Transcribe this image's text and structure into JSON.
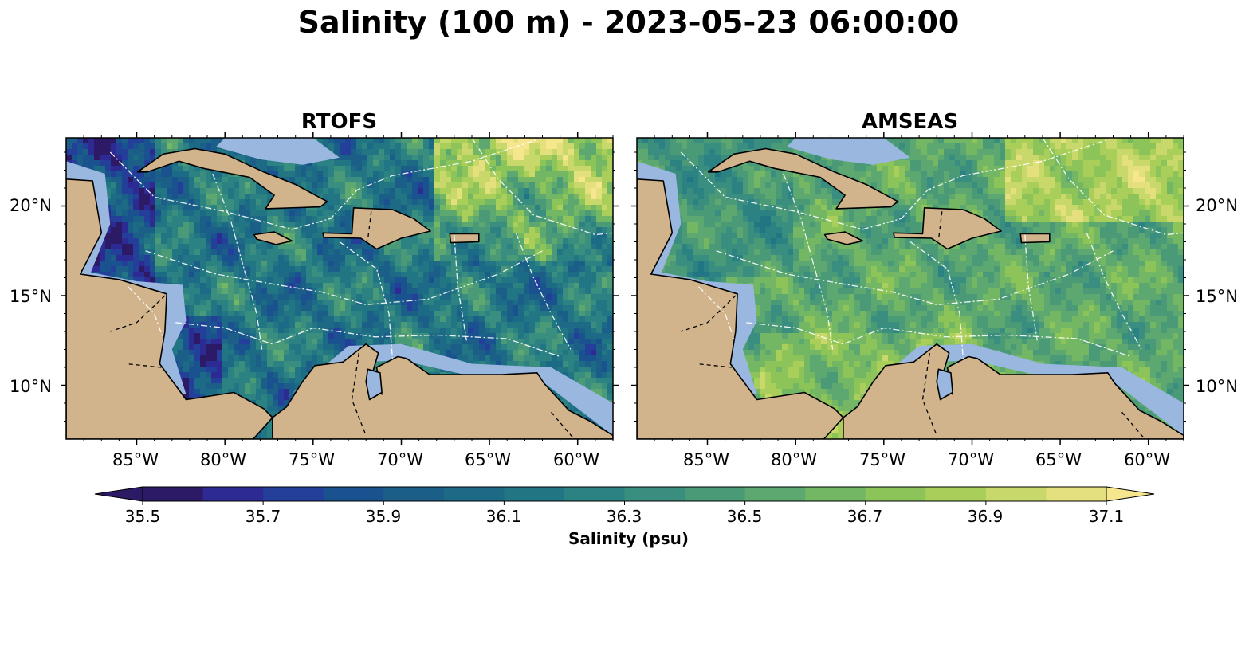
{
  "title": "Salinity (100 m) - 2023-05-23 06:00:00",
  "panels": [
    {
      "id": "rtofs",
      "title": "RTOFS"
    },
    {
      "id": "amseas",
      "title": "AMSEAS"
    }
  ],
  "lon_ticks": [
    "85°W",
    "80°W",
    "75°W",
    "70°W",
    "65°W",
    "60°W"
  ],
  "lat_ticks": [
    "20°N",
    "15°N",
    "10°N"
  ],
  "colorbar": {
    "label": "Salinity (psu)",
    "ticks": [
      "35.5",
      "35.7",
      "35.9",
      "36.1",
      "36.3",
      "36.5",
      "36.7",
      "36.9",
      "37.1"
    ],
    "levels": [
      35.5,
      35.6,
      35.7,
      35.8,
      35.9,
      36.0,
      36.1,
      36.2,
      36.3,
      36.4,
      36.5,
      36.6,
      36.7,
      36.8,
      36.9,
      37.0,
      37.1
    ],
    "colors": [
      "#2c1a66",
      "#2d2a94",
      "#233f9a",
      "#1a5290",
      "#1b5e88",
      "#1d6a86",
      "#227683",
      "#2c8282",
      "#3a8e7f",
      "#4a9a78",
      "#5ca870",
      "#73b765",
      "#8cc45a",
      "#a9cf5a",
      "#c8d86a",
      "#e4e07e",
      "#f6e68e"
    ]
  },
  "map": {
    "lon_range": [
      -89,
      -58
    ],
    "lat_range": [
      7,
      23.8
    ],
    "colors": {
      "land": "#d2b48c",
      "shelf": "#9ab7e0",
      "coast": "#000000",
      "eez": "#ffffff"
    }
  }
}
